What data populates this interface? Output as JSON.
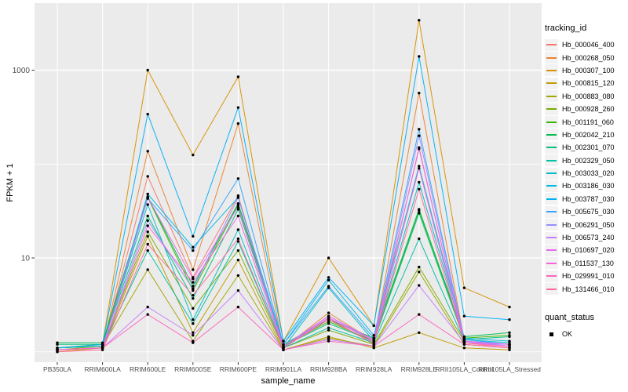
{
  "figure": {
    "x_axis_title": "sample_name",
    "y_axis_title": "FPKM + 1"
  },
  "legend": {
    "tracking_title": "tracking_id",
    "quant_title": "quant_status",
    "quant_entries": [
      {
        "label": "OK",
        "marker": "black-square"
      }
    ]
  },
  "chart_data": {
    "type": "line",
    "title": "",
    "xlabel": "sample_name",
    "ylabel": "FPKM + 1",
    "y_scale": "log10",
    "ylim": [
      0.8,
      5000
    ],
    "grid": true,
    "legend_position": "right",
    "panel_background": "#EBEBEB",
    "gridline_color": "#FFFFFF",
    "tick_label_color": "#4D4D4D",
    "point_color": "#000000",
    "y_ticks": [
      {
        "value": 10,
        "label": "10"
      },
      {
        "value": 1000,
        "label": "1000"
      }
    ],
    "y_minor_gridlines": [
      1,
      100
    ],
    "categories": [
      "PB350LA",
      "RRIM600LA",
      "RRIM600LE",
      "RRIM600SE",
      "RRIM600PE",
      "RRIM901LA",
      "RRIM928BA",
      "RRIM928LA",
      "RRIM928LE",
      "RRII105LA_Control",
      "RRII105LA_Stressed"
    ],
    "series": [
      {
        "name": "Hb_000046_400",
        "color": "#F8766D",
        "values": [
          1.05,
          1.1,
          74,
          6.2,
          46,
          1.1,
          2.3,
          1.2,
          150,
          1.25,
          1.15
        ]
      },
      {
        "name": "Hb_000268_050",
        "color": "#EA8331",
        "values": [
          1.05,
          1.1,
          137,
          7.5,
          270,
          1.1,
          2.6,
          1.3,
          570,
          1.3,
          1.2
        ]
      },
      {
        "name": "Hb_000307_100",
        "color": "#D89000",
        "values": [
          1.1,
          1.2,
          1000,
          125,
          850,
          1.3,
          10,
          1.9,
          3400,
          4.8,
          3.0
        ]
      },
      {
        "name": "Hb_000815_120",
        "color": "#C09B00",
        "values": [
          1.0,
          1.1,
          17,
          1.6,
          9.5,
          1.05,
          1.45,
          1.1,
          1.6,
          1.1,
          1.05
        ]
      },
      {
        "name": "Hb_000883_080",
        "color": "#A3A500",
        "values": [
          1.05,
          1.15,
          7.5,
          1.3,
          6.5,
          1.05,
          1.4,
          1.15,
          7.1,
          1.2,
          1.1
        ]
      },
      {
        "name": "Hb_000928_260",
        "color": "#7CAE00",
        "values": [
          1.1,
          1.15,
          19,
          2.9,
          12,
          1.1,
          1.7,
          1.2,
          8,
          1.3,
          1.2
        ]
      },
      {
        "name": "Hb_001191_060",
        "color": "#39B600",
        "values": [
          1.1,
          1.2,
          44,
          4.5,
          37,
          1.15,
          2.1,
          1.3,
          32,
          1.4,
          1.5
        ]
      },
      {
        "name": "Hb_002042_210",
        "color": "#00BB4E",
        "values": [
          1.25,
          1.25,
          45,
          5.0,
          38,
          1.2,
          2.2,
          1.4,
          33,
          1.45,
          1.6
        ]
      },
      {
        "name": "Hb_002301_070",
        "color": "#00BF7D",
        "values": [
          1.2,
          1.2,
          28,
          3.7,
          33,
          1.15,
          2.0,
          1.3,
          30,
          1.35,
          1.45
        ]
      },
      {
        "name": "Hb_002329_050",
        "color": "#00C1A3",
        "values": [
          1.1,
          1.15,
          12,
          2.0,
          15,
          1.1,
          1.8,
          1.25,
          16,
          1.3,
          1.2
        ]
      },
      {
        "name": "Hb_003033_020",
        "color": "#00BFC4",
        "values": [
          1.1,
          1.15,
          37,
          2.2,
          20,
          1.1,
          4.8,
          1.3,
          64,
          1.35,
          1.25
        ]
      },
      {
        "name": "Hb_003186_030",
        "color": "#00BAE0",
        "values": [
          1.05,
          1.1,
          48,
          13,
          44,
          1.2,
          5.8,
          1.5,
          95,
          1.4,
          1.3
        ]
      },
      {
        "name": "Hb_003787_030",
        "color": "#00B0F6",
        "values": [
          1.1,
          1.2,
          340,
          17,
          400,
          1.3,
          6.2,
          1.9,
          1400,
          2.4,
          2.2
        ]
      },
      {
        "name": "Hb_005675_030",
        "color": "#35A2FF",
        "values": [
          1.05,
          1.1,
          43,
          12,
          70,
          1.2,
          5.0,
          1.4,
          235,
          1.35,
          1.2
        ]
      },
      {
        "name": "Hb_006291_050",
        "color": "#9590FF",
        "values": [
          1.05,
          1.1,
          25,
          4.7,
          44,
          1.1,
          2.4,
          1.3,
          200,
          1.3,
          1.15
        ]
      },
      {
        "name": "Hb_006573_240",
        "color": "#C77CFF",
        "values": [
          1.05,
          1.1,
          3.0,
          1.5,
          4.5,
          1.05,
          1.35,
          1.15,
          5.1,
          1.25,
          1.2
        ]
      },
      {
        "name": "Hb_010697_020",
        "color": "#E76BF3",
        "values": [
          1.05,
          1.1,
          44,
          6.0,
          35,
          1.15,
          2.4,
          1.35,
          145,
          1.3,
          1.2
        ]
      },
      {
        "name": "Hb_011537_130",
        "color": "#FA62DB",
        "values": [
          1.05,
          1.1,
          22,
          5.5,
          28,
          1.1,
          2.3,
          1.3,
          90,
          1.25,
          1.15
        ]
      },
      {
        "name": "Hb_029991_010",
        "color": "#FF62BC",
        "values": [
          1.05,
          1.1,
          2.5,
          1.25,
          3.0,
          1.05,
          1.3,
          1.15,
          2.5,
          1.2,
          1.1
        ]
      },
      {
        "name": "Hb_131466_010",
        "color": "#FF6A98",
        "values": [
          1.0,
          1.05,
          14,
          4.0,
          16,
          1.1,
          2.2,
          1.25,
          54,
          1.25,
          1.1
        ]
      }
    ]
  }
}
